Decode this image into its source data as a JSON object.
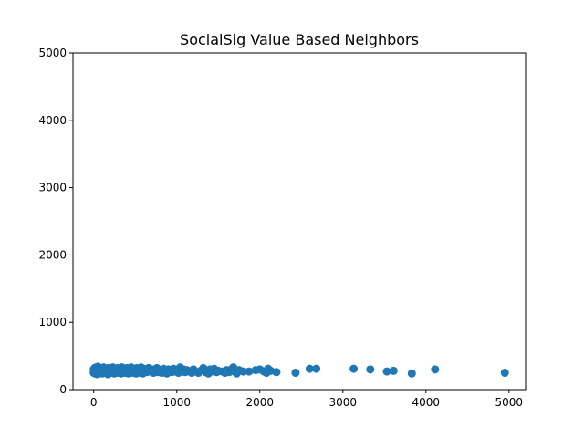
{
  "chart_data": {
    "type": "scatter",
    "title": "SocialSig Value Based Neighbors",
    "xlabel": "",
    "ylabel": "",
    "xlim": [
      -250,
      5200
    ],
    "ylim": [
      0,
      5000
    ],
    "xticks": [
      0,
      1000,
      2000,
      3000,
      4000,
      5000
    ],
    "yticks": [
      0,
      1000,
      2000,
      3000,
      4000,
      5000
    ],
    "grid": false,
    "marker_color": "#1f77b4",
    "series": [
      {
        "points": [
          [
            0,
            250
          ],
          [
            0,
            300
          ],
          [
            5,
            270
          ],
          [
            10,
            320
          ],
          [
            15,
            240
          ],
          [
            20,
            290
          ],
          [
            25,
            330
          ],
          [
            30,
            260
          ],
          [
            35,
            310
          ],
          [
            40,
            230
          ],
          [
            45,
            280
          ],
          [
            50,
            340
          ],
          [
            55,
            250
          ],
          [
            60,
            300
          ],
          [
            65,
            270
          ],
          [
            70,
            320
          ],
          [
            80,
            260
          ],
          [
            90,
            310
          ],
          [
            100,
            240
          ],
          [
            110,
            290
          ],
          [
            120,
            330
          ],
          [
            130,
            270
          ],
          [
            140,
            250
          ],
          [
            150,
            310
          ],
          [
            160,
            280
          ],
          [
            170,
            230
          ],
          [
            180,
            320
          ],
          [
            190,
            260
          ],
          [
            200,
            300
          ],
          [
            210,
            250
          ],
          [
            220,
            290
          ],
          [
            230,
            330
          ],
          [
            240,
            270
          ],
          [
            250,
            240
          ],
          [
            260,
            310
          ],
          [
            270,
            280
          ],
          [
            280,
            260
          ],
          [
            290,
            320
          ],
          [
            300,
            250
          ],
          [
            310,
            300
          ],
          [
            320,
            270
          ],
          [
            330,
            240
          ],
          [
            340,
            330
          ],
          [
            350,
            280
          ],
          [
            360,
            260
          ],
          [
            370,
            310
          ],
          [
            380,
            250
          ],
          [
            390,
            290
          ],
          [
            400,
            320
          ],
          [
            410,
            270
          ],
          [
            420,
            240
          ],
          [
            430,
            300
          ],
          [
            440,
            260
          ],
          [
            450,
            330
          ],
          [
            460,
            280
          ],
          [
            470,
            250
          ],
          [
            480,
            310
          ],
          [
            490,
            270
          ],
          [
            500,
            290
          ],
          [
            510,
            240
          ],
          [
            520,
            320
          ],
          [
            530,
            260
          ],
          [
            540,
            300
          ],
          [
            550,
            280
          ],
          [
            560,
            250
          ],
          [
            570,
            330
          ],
          [
            580,
            270
          ],
          [
            590,
            240
          ],
          [
            600,
            310
          ],
          [
            620,
            290
          ],
          [
            640,
            260
          ],
          [
            660,
            320
          ],
          [
            680,
            270
          ],
          [
            700,
            300
          ],
          [
            720,
            250
          ],
          [
            740,
            280
          ],
          [
            760,
            320
          ],
          [
            780,
            260
          ],
          [
            800,
            290
          ],
          [
            820,
            250
          ],
          [
            840,
            310
          ],
          [
            860,
            270
          ],
          [
            880,
            240
          ],
          [
            900,
            300
          ],
          [
            920,
            280
          ],
          [
            940,
            260
          ],
          [
            960,
            310
          ],
          [
            980,
            270
          ],
          [
            1000,
            290
          ],
          [
            1020,
            250
          ],
          [
            1040,
            330
          ],
          [
            1060,
            270
          ],
          [
            1080,
            300
          ],
          [
            1100,
            260
          ],
          [
            1120,
            290
          ],
          [
            1150,
            270
          ],
          [
            1180,
            250
          ],
          [
            1200,
            300
          ],
          [
            1230,
            270
          ],
          [
            1260,
            250
          ],
          [
            1300,
            290
          ],
          [
            1320,
            320
          ],
          [
            1350,
            260
          ],
          [
            1380,
            240
          ],
          [
            1400,
            300
          ],
          [
            1420,
            270
          ],
          [
            1450,
            310
          ],
          [
            1480,
            260
          ],
          [
            1500,
            280
          ],
          [
            1550,
            270
          ],
          [
            1580,
            250
          ],
          [
            1600,
            290
          ],
          [
            1630,
            260
          ],
          [
            1660,
            300
          ],
          [
            1680,
            330
          ],
          [
            1700,
            270
          ],
          [
            1720,
            240
          ],
          [
            1750,
            290
          ],
          [
            1800,
            270
          ],
          [
            1870,
            270
          ],
          [
            1950,
            290
          ],
          [
            2000,
            300
          ],
          [
            2050,
            270
          ],
          [
            2080,
            250
          ],
          [
            2100,
            310
          ],
          [
            2130,
            280
          ],
          [
            2200,
            260
          ],
          [
            2430,
            250
          ],
          [
            2600,
            310
          ],
          [
            2680,
            310
          ],
          [
            3130,
            310
          ],
          [
            3330,
            300
          ],
          [
            3530,
            270
          ],
          [
            3610,
            280
          ],
          [
            3830,
            240
          ],
          [
            4110,
            300
          ],
          [
            4950,
            250
          ]
        ]
      }
    ]
  }
}
